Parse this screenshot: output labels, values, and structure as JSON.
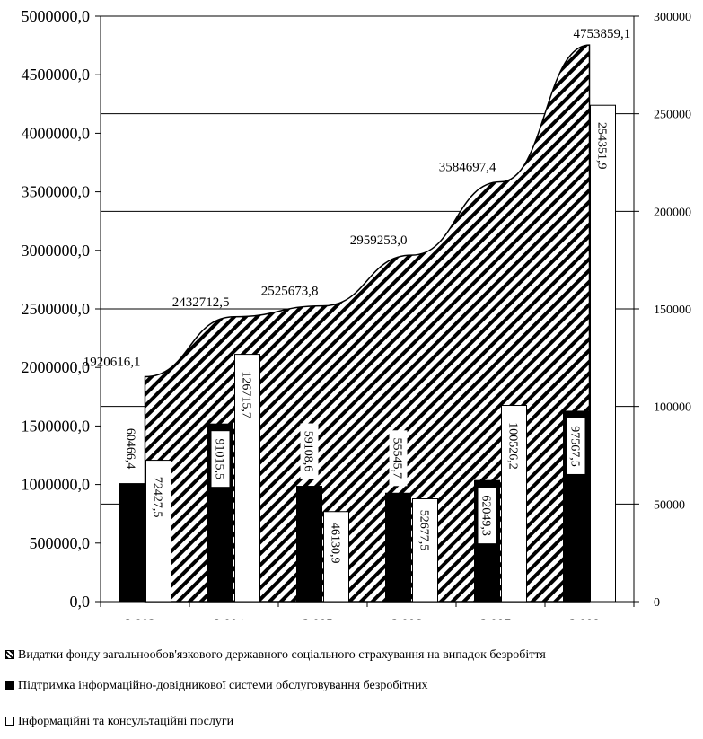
{
  "chart_data": {
    "type": "bar",
    "categories": [
      "2 003р.",
      "2 004р.",
      "2 005р.",
      "2 006р.",
      "2 007р.",
      "2 008р."
    ],
    "area_series": {
      "name": "Видатки фонду загальнообов'язкового державного соціального страхування на випадок безробіття",
      "axis": "left",
      "values": [
        1920616.1,
        2432712.5,
        2525673.8,
        2959253.0,
        3584697.4,
        4753859.1
      ],
      "labels": [
        "1920616,1",
        "2432712,5",
        "2525673,8",
        "2959253,0",
        "3584697,4",
        "4753859,1"
      ],
      "color": "#000000",
      "pattern": "diagonal-hatch"
    },
    "series": [
      {
        "name": "Підтримка інформаційно-довідникової системи обслуговування безробітних",
        "axis": "right",
        "values": [
          60466.4,
          91015.5,
          59108.6,
          55545.7,
          62049.3,
          97567.5
        ],
        "labels": [
          "60466,4",
          "91015,5",
          "59108,6",
          "55545,7",
          "62049,3",
          "97567,5"
        ],
        "color": "#000000"
      },
      {
        "name": "Інформаційні та консультаційні послуги",
        "axis": "right",
        "values": [
          72427.5,
          126715.7,
          46130.9,
          52677.5,
          100526.2,
          254351.9
        ],
        "labels": [
          "72427,5",
          "126715,7",
          "46130,9",
          "52677,5",
          "100526,2",
          "254351,9"
        ],
        "color": "#ffffff"
      }
    ],
    "left_axis": {
      "ylim": [
        0,
        5000000
      ],
      "ticks": [
        0,
        500000,
        1000000,
        1500000,
        2000000,
        2500000,
        3000000,
        3500000,
        4000000,
        4500000,
        5000000
      ],
      "tick_labels": [
        "0,0",
        "500000,0",
        "1000000,0",
        "1500000,0",
        "2000000,0",
        "2500000,0",
        "3000000,0",
        "3500000,0",
        "4000000,0",
        "4500000,0",
        "5000000,0"
      ]
    },
    "right_axis": {
      "ylim": [
        0,
        300000
      ],
      "ticks": [
        0,
        50000,
        100000,
        150000,
        200000,
        250000,
        300000
      ],
      "tick_labels": [
        "0",
        "50000",
        "100000",
        "150000",
        "200000",
        "250000",
        "300000"
      ]
    },
    "grid": true,
    "legend_position": "bottom"
  },
  "legend": [
    {
      "label": "Видатки фонду загальнообов'язкового державного соціального страхування на випадок безробіття",
      "swatch": "hatch"
    },
    {
      "label": "Підтримка інформаційно-довідникової системи обслуговування безробітних",
      "swatch": "#000000"
    },
    {
      "label": "Інформаційні та консультаційні послуги",
      "swatch": "#ffffff"
    }
  ]
}
